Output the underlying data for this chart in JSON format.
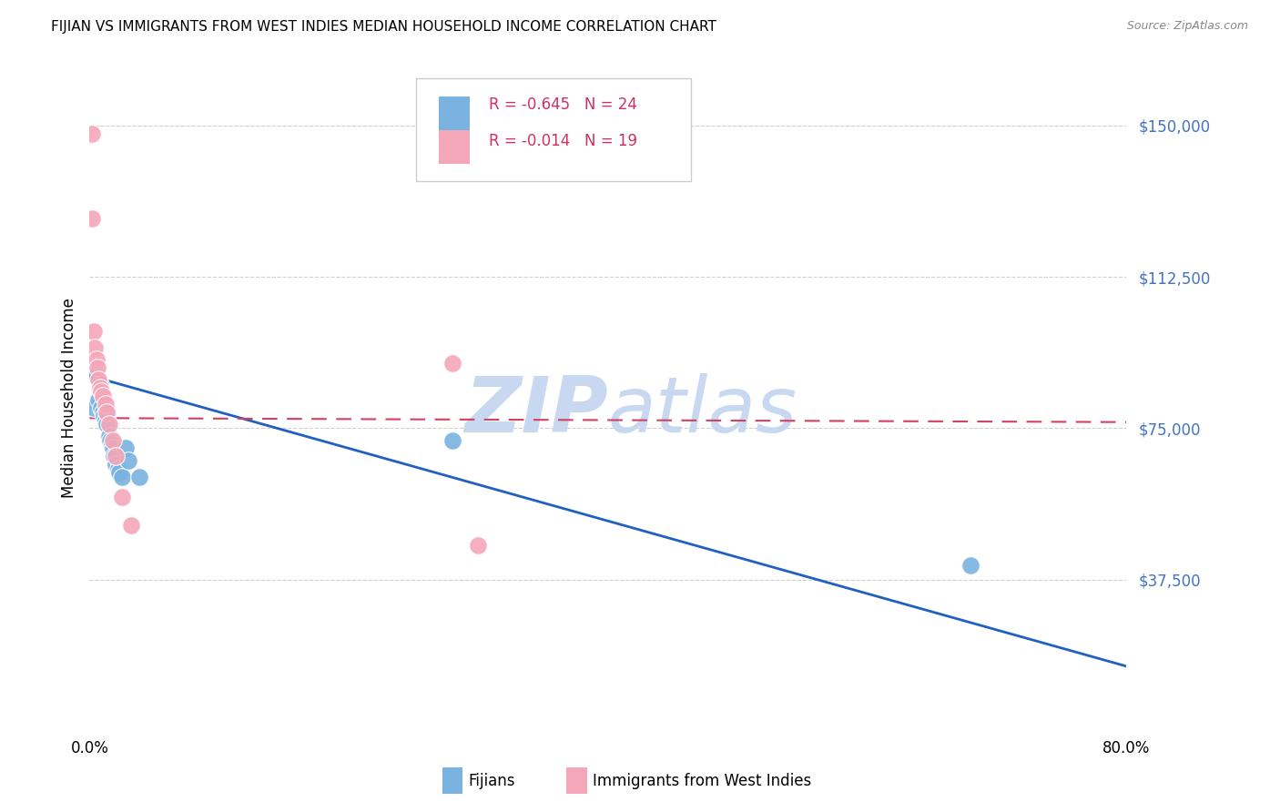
{
  "title": "FIJIAN VS IMMIGRANTS FROM WEST INDIES MEDIAN HOUSEHOLD INCOME CORRELATION CHART",
  "source": "Source: ZipAtlas.com",
  "ylabel": "Median Household Income",
  "yticks": [
    0,
    37500,
    75000,
    112500,
    150000
  ],
  "ytick_labels": [
    "",
    "$37,500",
    "$75,000",
    "$112,500",
    "$150,000"
  ],
  "xlim": [
    0.0,
    0.8
  ],
  "ylim": [
    0,
    165000
  ],
  "legend_blue_r": "-0.645",
  "legend_blue_n": "24",
  "legend_pink_r": "-0.014",
  "legend_pink_n": "19",
  "legend_label_blue": "Fijians",
  "legend_label_pink": "Immigrants from West Indies",
  "blue_color": "#7ab3e0",
  "pink_color": "#f4a7b9",
  "trendline_blue_color": "#2060c0",
  "trendline_pink_color": "#d44060",
  "watermark_color": "#c8d8f0",
  "fijians_x": [
    0.003,
    0.005,
    0.007,
    0.008,
    0.009,
    0.01,
    0.011,
    0.012,
    0.013,
    0.014,
    0.015,
    0.016,
    0.017,
    0.018,
    0.019,
    0.02,
    0.022,
    0.023,
    0.025,
    0.028,
    0.03,
    0.038,
    0.28,
    0.68
  ],
  "fijians_y": [
    80000,
    88000,
    82000,
    86000,
    80000,
    79000,
    78000,
    77000,
    76000,
    79000,
    73000,
    72000,
    71000,
    70000,
    68000,
    66000,
    65000,
    64000,
    63000,
    70000,
    67000,
    63000,
    72000,
    41000
  ],
  "westindies_x": [
    0.002,
    0.002,
    0.003,
    0.004,
    0.005,
    0.006,
    0.007,
    0.008,
    0.009,
    0.01,
    0.012,
    0.013,
    0.015,
    0.018,
    0.02,
    0.025,
    0.032,
    0.28,
    0.3
  ],
  "westindies_y": [
    148000,
    127000,
    99000,
    95000,
    92000,
    90000,
    87000,
    85000,
    84000,
    83000,
    81000,
    79000,
    76000,
    72000,
    68000,
    58000,
    51000,
    91000,
    46000
  ],
  "blue_trendline_x": [
    0.0,
    0.8
  ],
  "blue_trendline_y": [
    88000,
    16000
  ],
  "pink_trendline_x": [
    0.0,
    0.8
  ],
  "pink_trendline_y": [
    77500,
    76500
  ]
}
